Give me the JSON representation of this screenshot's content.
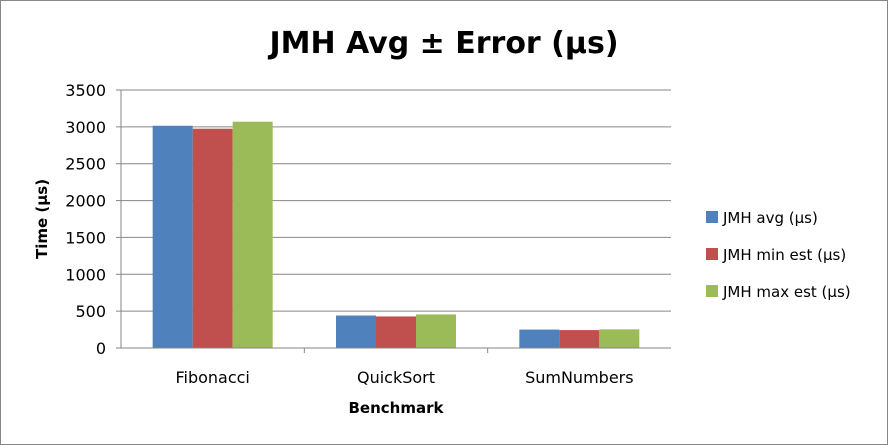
{
  "chart_data": {
    "type": "bar",
    "title": "JMH Avg ± Error (µs)",
    "xlabel": "Benchmark",
    "ylabel": "Time (µs)",
    "ylim": [
      0,
      3500
    ],
    "yticks": [
      0,
      500,
      1000,
      1500,
      2000,
      2500,
      3000,
      3500
    ],
    "grid": true,
    "legend_position": "right",
    "categories": [
      "Fibonacci",
      "QuickSort",
      "SumNumbers"
    ],
    "series": [
      {
        "name": "JMH avg (µs)",
        "color": "#4f81bd",
        "values": [
          3015,
          440,
          250
        ]
      },
      {
        "name": "JMH min est (µs)",
        "color": "#c0504d",
        "values": [
          2975,
          428,
          243
        ]
      },
      {
        "name": "JMH max est (µs)",
        "color": "#9bbb59",
        "values": [
          3070,
          455,
          253
        ]
      }
    ]
  }
}
